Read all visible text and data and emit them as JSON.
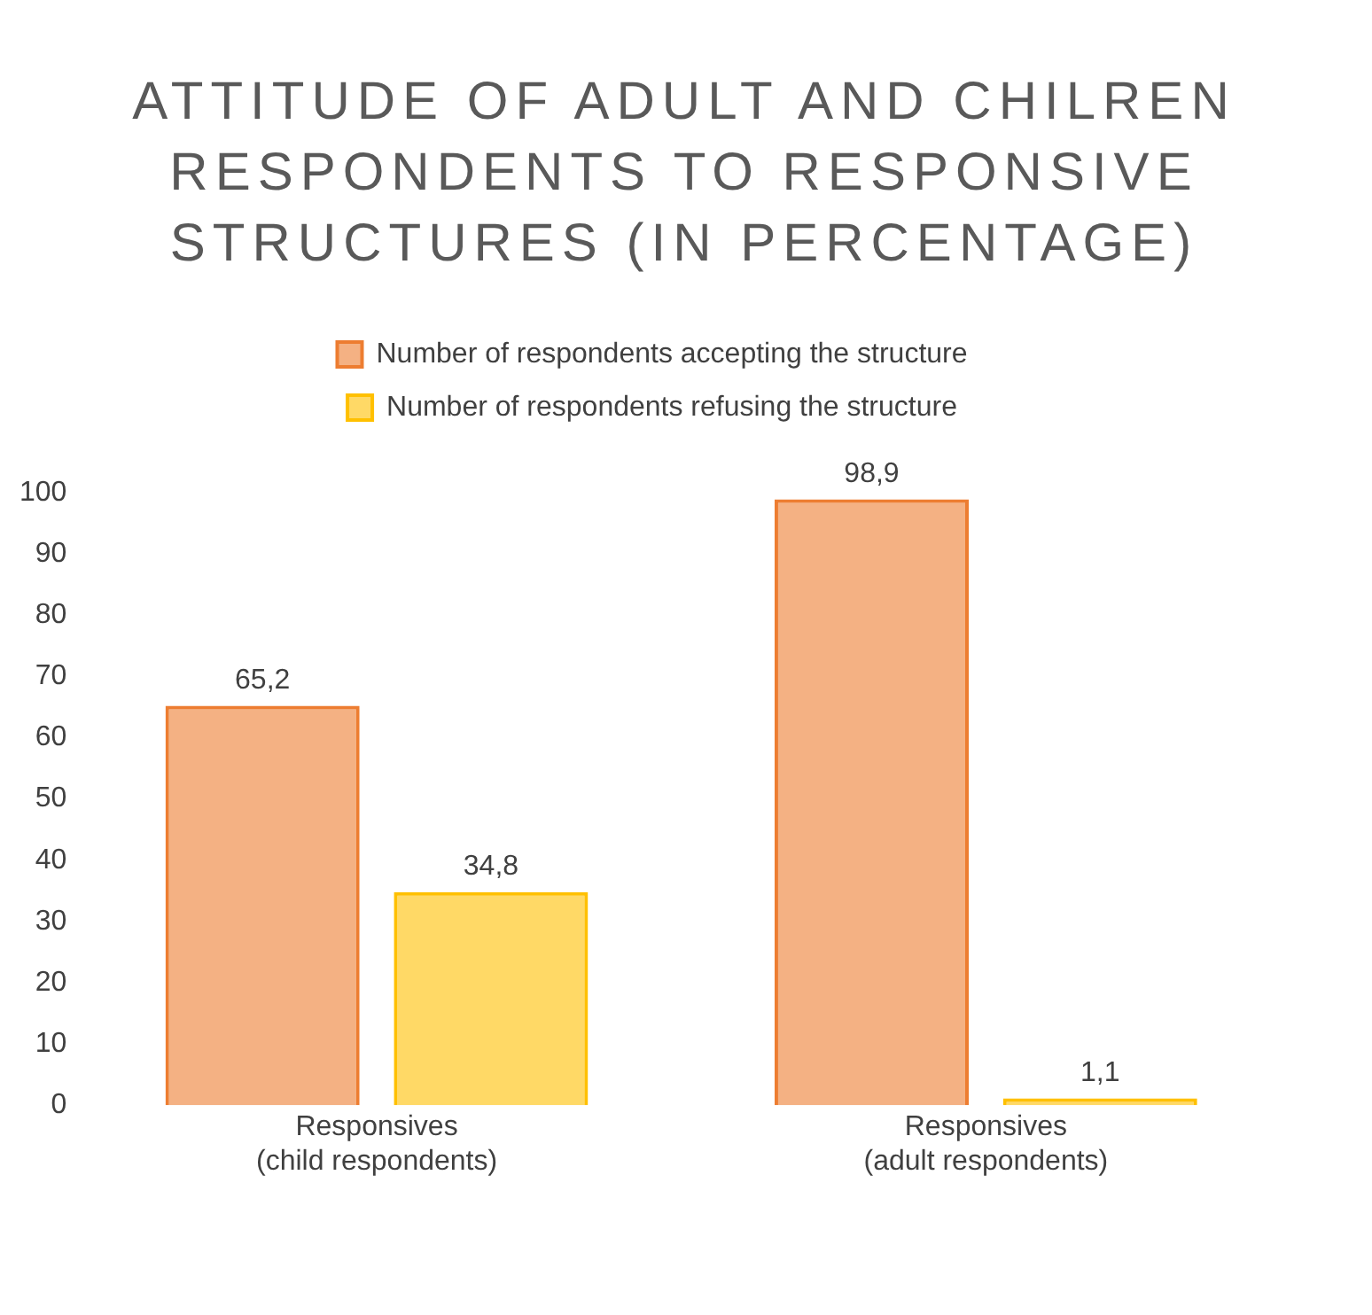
{
  "chart_data": {
    "type": "bar",
    "title": "ATTITUDE OF ADULT AND CHILREN RESPONDENTS TO RESPONSIVE STRUCTURES (IN PERCENTAGE)",
    "categories": [
      "Responsives (child respondents)",
      "Responsives (adult respondents)"
    ],
    "series": [
      {
        "name": "Number of respondents accepting the structure",
        "color": "#ed7d31",
        "values": [
          65.2,
          98.9
        ],
        "value_labels": [
          "65,2",
          "98,9"
        ]
      },
      {
        "name": "Number of respondents refusing the structure",
        "color": "#ffc000",
        "values": [
          34.8,
          1.1
        ],
        "value_labels": [
          "34,8",
          "1,1"
        ]
      }
    ],
    "ylim": [
      0,
      100
    ],
    "yticks": [
      0,
      10,
      20,
      30,
      40,
      50,
      60,
      70,
      80,
      90,
      100
    ],
    "grid": false,
    "legend": "top"
  }
}
